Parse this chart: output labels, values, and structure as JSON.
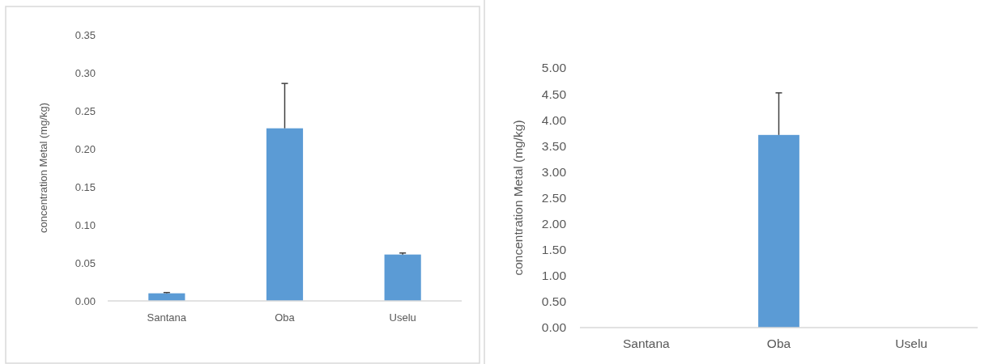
{
  "chart_data": [
    {
      "type": "bar",
      "ylabel": "concentration Metal (mg/kg)",
      "categories": [
        "Santana",
        "Oba",
        "Uselu"
      ],
      "values": [
        0.01,
        0.227,
        0.061
      ],
      "errors": [
        0.001,
        0.059,
        0.002
      ],
      "color": "#5b9bd5",
      "ylim": [
        0,
        0.35
      ],
      "yticks": [
        {
          "value": 0,
          "label": "0.00"
        },
        {
          "value": 0.05,
          "label": "0.05"
        },
        {
          "value": 0.1,
          "label": "0.10"
        },
        {
          "value": 0.15,
          "label": "0.15"
        },
        {
          "value": 0.2,
          "label": "0.20"
        },
        {
          "value": 0.25,
          "label": "0.25"
        },
        {
          "value": 0.3,
          "label": "0.30"
        },
        {
          "value": 0.35,
          "label": "0.35"
        }
      ],
      "grid": false
    },
    {
      "type": "bar",
      "ylabel": "concentration Metal (mg/kg)",
      "categories": [
        "Santana",
        "Oba",
        "Uselu"
      ],
      "values": [
        0,
        3.71,
        0
      ],
      "errors": [
        null,
        0.81,
        null
      ],
      "color": "#5b9bd5",
      "ylim": [
        0,
        5
      ],
      "yticks": [
        {
          "value": 0,
          "label": "0.00"
        },
        {
          "value": 0.5,
          "label": "0.50"
        },
        {
          "value": 1,
          "label": "1.00"
        },
        {
          "value": 1.5,
          "label": "1.50"
        },
        {
          "value": 2,
          "label": "2.00"
        },
        {
          "value": 2.5,
          "label": "2.50"
        },
        {
          "value": 3,
          "label": "3.00"
        },
        {
          "value": 3.5,
          "label": "3.50"
        },
        {
          "value": 4,
          "label": "4.00"
        },
        {
          "value": 4.5,
          "label": "4.50"
        },
        {
          "value": 5,
          "label": "5.00"
        }
      ],
      "grid": false
    }
  ]
}
